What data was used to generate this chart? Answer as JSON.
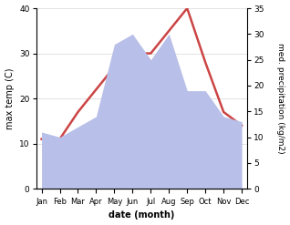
{
  "months": [
    "Jan",
    "Feb",
    "Mar",
    "Apr",
    "May",
    "Jun",
    "Jul",
    "Aug",
    "Sep",
    "Oct",
    "Nov",
    "Dec"
  ],
  "temp": [
    11,
    11,
    17,
    22,
    27,
    30,
    30,
    35,
    40,
    28,
    17,
    14
  ],
  "precip": [
    11,
    10,
    12,
    14,
    28,
    30,
    25,
    30,
    19,
    19,
    14,
    13
  ],
  "temp_color": "#cc4444",
  "precip_fill_color": "#b8bfe8",
  "temp_ylim": [
    0,
    40
  ],
  "precip_ylim": [
    0,
    35
  ],
  "ylabel_left": "max temp (C)",
  "ylabel_right": "med. precipitation (kg/m2)",
  "xlabel": "date (month)",
  "temp_yticks": [
    0,
    10,
    20,
    30,
    40
  ],
  "precip_yticks": [
    0,
    5,
    10,
    15,
    20,
    25,
    30,
    35
  ],
  "bg_color": "#ffffff",
  "grid_color": "#dddddd"
}
